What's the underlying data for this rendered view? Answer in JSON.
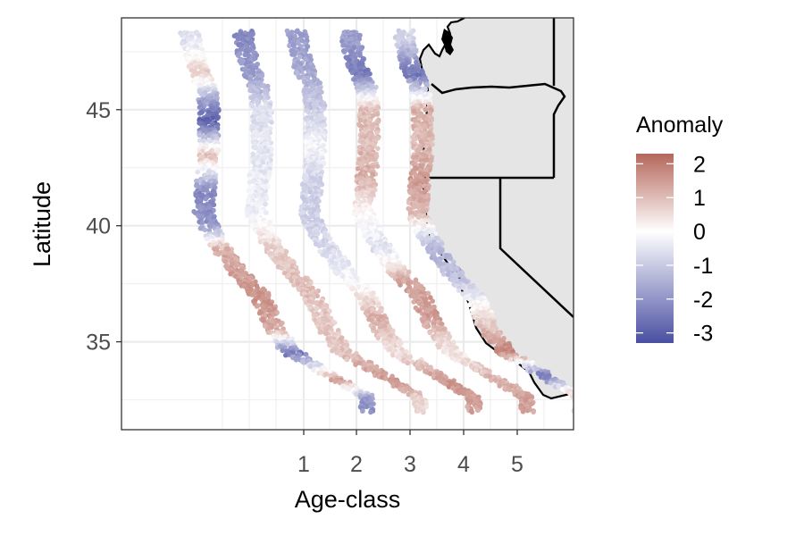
{
  "chart_data": {
    "type": "scatter",
    "title": "",
    "xlabel": "Age-class",
    "ylabel": "Latitude",
    "x_ticks": [
      "1",
      "2",
      "3",
      "4",
      "5"
    ],
    "y_ticks": [
      35,
      40,
      45
    ],
    "ylim": [
      31.2,
      48.4
    ],
    "grid": true,
    "legend": {
      "title": "Anomaly",
      "placement": "right",
      "type": "colorbar",
      "ticks": [
        2,
        1,
        0,
        -1,
        -2,
        -3
      ],
      "range": [
        -3.3,
        2.3
      ],
      "colors": {
        "low": "#4a4fa2",
        "mid": "#ffffff",
        "high": "#b5675b"
      }
    },
    "coastline_profile": [
      {
        "lat": 48.3,
        "offset": 0.0
      },
      {
        "lat": 47.0,
        "offset": 0.1
      },
      {
        "lat": 46.0,
        "offset": 0.3
      },
      {
        "lat": 45.0,
        "offset": 0.35
      },
      {
        "lat": 43.0,
        "offset": 0.35
      },
      {
        "lat": 42.0,
        "offset": 0.3
      },
      {
        "lat": 40.5,
        "offset": 0.25
      },
      {
        "lat": 39.5,
        "offset": 0.45
      },
      {
        "lat": 38.0,
        "offset": 0.9
      },
      {
        "lat": 37.0,
        "offset": 1.3
      },
      {
        "lat": 35.5,
        "offset": 1.6
      },
      {
        "lat": 34.5,
        "offset": 1.9
      },
      {
        "lat": 34.0,
        "offset": 2.3
      },
      {
        "lat": 33.3,
        "offset": 2.8
      },
      {
        "lat": 32.6,
        "offset": 3.3
      }
    ],
    "series": [
      {
        "age_class": 1,
        "anomaly_by_latitude": [
          {
            "lat": 48.0,
            "anomaly": -0.6
          },
          {
            "lat": 46.5,
            "anomaly": 0.8
          },
          {
            "lat": 45.5,
            "anomaly": -1.5
          },
          {
            "lat": 44.5,
            "anomaly": -3.0
          },
          {
            "lat": 43.0,
            "anomaly": 1.0
          },
          {
            "lat": 41.5,
            "anomaly": -2.2
          },
          {
            "lat": 40.0,
            "anomaly": -2.0
          },
          {
            "lat": 39.0,
            "anomaly": 1.2
          },
          {
            "lat": 37.0,
            "anomaly": 1.6
          },
          {
            "lat": 35.5,
            "anomaly": 1.3
          },
          {
            "lat": 34.5,
            "anomaly": -2.5
          },
          {
            "lat": 33.3,
            "anomaly": 1.5
          },
          {
            "lat": 32.5,
            "anomaly": -2.0
          }
        ]
      },
      {
        "age_class": 2,
        "anomaly_by_latitude": [
          {
            "lat": 48.0,
            "anomaly": -2.2
          },
          {
            "lat": 46.5,
            "anomaly": -1.8
          },
          {
            "lat": 45.0,
            "anomaly": -0.6
          },
          {
            "lat": 43.5,
            "anomaly": -0.5
          },
          {
            "lat": 42.0,
            "anomaly": -0.4
          },
          {
            "lat": 40.5,
            "anomaly": -0.3
          },
          {
            "lat": 39.0,
            "anomaly": 0.7
          },
          {
            "lat": 37.5,
            "anomaly": 1.0
          },
          {
            "lat": 36.0,
            "anomaly": 0.8
          },
          {
            "lat": 34.5,
            "anomaly": 0.9
          },
          {
            "lat": 33.2,
            "anomaly": 1.6
          },
          {
            "lat": 32.5,
            "anomaly": 0.6
          }
        ]
      },
      {
        "age_class": 3,
        "anomaly_by_latitude": [
          {
            "lat": 48.0,
            "anomaly": -1.8
          },
          {
            "lat": 46.5,
            "anomaly": -1.5
          },
          {
            "lat": 45.0,
            "anomaly": -1.0
          },
          {
            "lat": 43.5,
            "anomaly": -0.2
          },
          {
            "lat": 42.0,
            "anomaly": -0.8
          },
          {
            "lat": 40.5,
            "anomaly": -0.9
          },
          {
            "lat": 39.0,
            "anomaly": -0.7
          },
          {
            "lat": 37.5,
            "anomaly": -0.1
          },
          {
            "lat": 36.0,
            "anomaly": 1.2
          },
          {
            "lat": 34.5,
            "anomaly": 0.4
          },
          {
            "lat": 33.2,
            "anomaly": 1.6
          },
          {
            "lat": 32.5,
            "anomaly": 1.4
          }
        ]
      },
      {
        "age_class": 4,
        "anomaly_by_latitude": [
          {
            "lat": 48.0,
            "anomaly": -1.8
          },
          {
            "lat": 46.5,
            "anomaly": -2.5
          },
          {
            "lat": 45.0,
            "anomaly": 1.0
          },
          {
            "lat": 43.5,
            "anomaly": 1.0
          },
          {
            "lat": 42.0,
            "anomaly": 1.2
          },
          {
            "lat": 40.5,
            "anomaly": 0.1
          },
          {
            "lat": 39.0,
            "anomaly": -0.6
          },
          {
            "lat": 37.5,
            "anomaly": 1.4
          },
          {
            "lat": 36.0,
            "anomaly": 1.5
          },
          {
            "lat": 34.5,
            "anomaly": 0.3
          },
          {
            "lat": 33.2,
            "anomaly": 1.2
          },
          {
            "lat": 32.5,
            "anomaly": 1.4
          }
        ]
      },
      {
        "age_class": 5,
        "anomaly_by_latitude": [
          {
            "lat": 48.0,
            "anomaly": -0.8
          },
          {
            "lat": 46.5,
            "anomaly": -2.6
          },
          {
            "lat": 45.0,
            "anomaly": 1.2
          },
          {
            "lat": 43.5,
            "anomaly": 1.0
          },
          {
            "lat": 42.0,
            "anomaly": 1.5
          },
          {
            "lat": 40.5,
            "anomaly": 1.0
          },
          {
            "lat": 39.0,
            "anomaly": -1.5
          },
          {
            "lat": 37.5,
            "anomaly": -1.0
          },
          {
            "lat": 36.0,
            "anomaly": 0.6
          },
          {
            "lat": 34.5,
            "anomaly": 1.8
          },
          {
            "lat": 33.5,
            "anomaly": -2.5
          },
          {
            "lat": 32.8,
            "anomaly": 0.5
          }
        ]
      }
    ]
  }
}
